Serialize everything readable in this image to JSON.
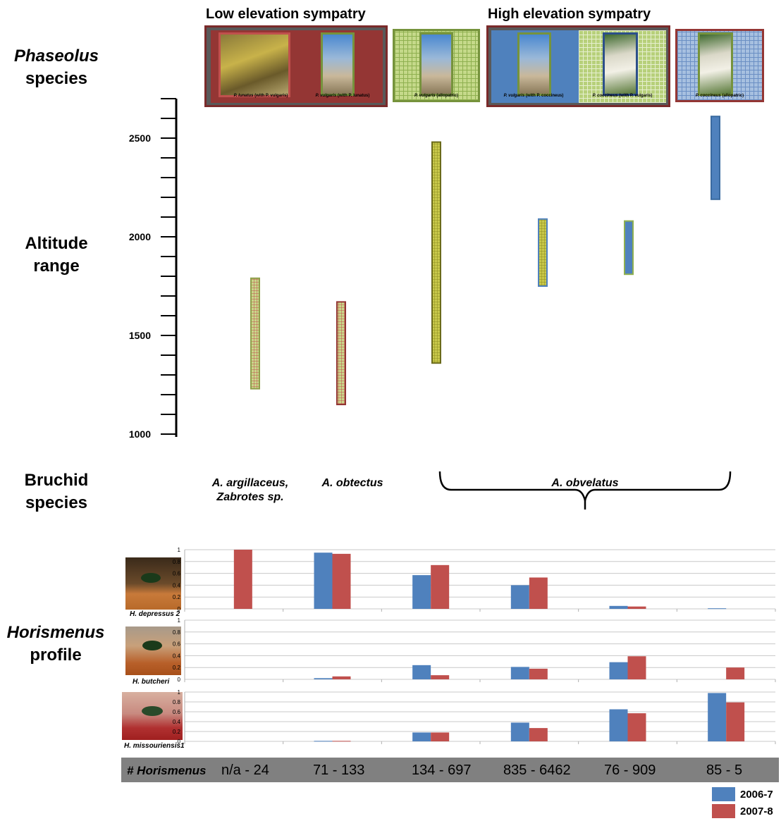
{
  "row_labels": {
    "phaseolus_italic": "Phaseolus",
    "phaseolus_rest": "species",
    "altitude_1": "Altitude",
    "altitude_2": "range",
    "bruchid_1": "Bruchid",
    "bruchid_2": "species",
    "horismenus_italic": "Horismenus",
    "horismenus_rest": "profile"
  },
  "group_titles": {
    "low": "Low elevation sympatry",
    "high": "High elevation sympatry"
  },
  "species_panels": [
    {
      "caption_italic": "P. lunatus",
      "caption_rest": " (with P. vulgaris)"
    },
    {
      "caption_italic": "P. vulgaris",
      "caption_rest": " (with P. lunatus)"
    },
    {
      "caption_italic": "P. vulgaris",
      "caption_rest": " (allopatric)"
    },
    {
      "caption_italic": "P. vulgaris",
      "caption_rest": " (with P. coccineus)"
    },
    {
      "caption_italic": "P. coccineus",
      "caption_rest": " (with P. vulgaris)"
    },
    {
      "caption_italic": "P. coccineus",
      "caption_rest": " (allopatric)"
    }
  ],
  "bruchid_species": {
    "s1_line1": "A. argillaceus,",
    "s1_line2": "Zabrotes sp.",
    "s2": "A. obtectus",
    "s3": "A. obvelatus"
  },
  "insects": {
    "h1": "H. depressus 2",
    "h2": "H. butcheri",
    "h3": "H. missouriensis1"
  },
  "footer": {
    "label": "# Horismenus",
    "counts": [
      "n/a - 24",
      "71 - 133",
      "134 - 697",
      "835 - 6462",
      "76 - 909",
      "85 - 5"
    ]
  },
  "legend": [
    {
      "label": "2006-7",
      "color": "#4f81bd"
    },
    {
      "label": "2007-8",
      "color": "#c0504d"
    }
  ],
  "colors": {
    "series_2006": "#4f81bd",
    "series_2007": "#c0504d",
    "panel_red": "#943634",
    "panel_green": "#9bbb59",
    "panel_blue": "#4f81bd",
    "olive": "#b4b436"
  },
  "chart_data": [
    {
      "type": "range",
      "name": "altitude",
      "yticks": [
        1000,
        1500,
        2000,
        2500
      ],
      "ylim": [
        1000,
        2700
      ],
      "ranges": [
        {
          "low": 1230,
          "high": 1790,
          "fill": "green-red"
        },
        {
          "low": 1150,
          "high": 1670,
          "fill": "green-red-border"
        },
        {
          "low": 1360,
          "high": 2480,
          "fill": "olive"
        },
        {
          "low": 1750,
          "high": 2090,
          "fill": "olive-blue-border"
        },
        {
          "low": 1810,
          "high": 2080,
          "fill": "blue-green-border"
        },
        {
          "low": 2190,
          "high": 2610,
          "fill": "blue"
        }
      ]
    },
    {
      "type": "bar",
      "name": "H. depressus 2",
      "ylim": [
        0,
        1
      ],
      "yticks": [
        "0",
        "0.2",
        "0.4",
        "0.6",
        "0.8",
        "1"
      ],
      "series": [
        {
          "name": "2006-7",
          "values": [
            0,
            0.95,
            0.57,
            0.4,
            0.05,
            0.01
          ]
        },
        {
          "name": "2007-8",
          "values": [
            1.0,
            0.93,
            0.74,
            0.53,
            0.04,
            0
          ]
        }
      ]
    },
    {
      "type": "bar",
      "name": "H. butcheri",
      "ylim": [
        0,
        1
      ],
      "yticks": [
        "0",
        "0.2",
        "0.4",
        "0.6",
        "0.8",
        "1"
      ],
      "series": [
        {
          "name": "2006-7",
          "values": [
            0,
            0.02,
            0.24,
            0.21,
            0.29,
            0
          ]
        },
        {
          "name": "2007-8",
          "values": [
            0,
            0.05,
            0.07,
            0.18,
            0.39,
            0.2
          ]
        }
      ]
    },
    {
      "type": "bar",
      "name": "H. missouriensis1",
      "ylim": [
        0,
        1
      ],
      "yticks": [
        "0",
        "0.2",
        "0.4",
        "0.6",
        "0.8",
        "1"
      ],
      "series": [
        {
          "name": "2006-7",
          "values": [
            0,
            0.01,
            0.18,
            0.38,
            0.65,
            0.98
          ]
        },
        {
          "name": "2007-8",
          "values": [
            0,
            0.01,
            0.18,
            0.27,
            0.57,
            0.79
          ]
        }
      ]
    }
  ]
}
